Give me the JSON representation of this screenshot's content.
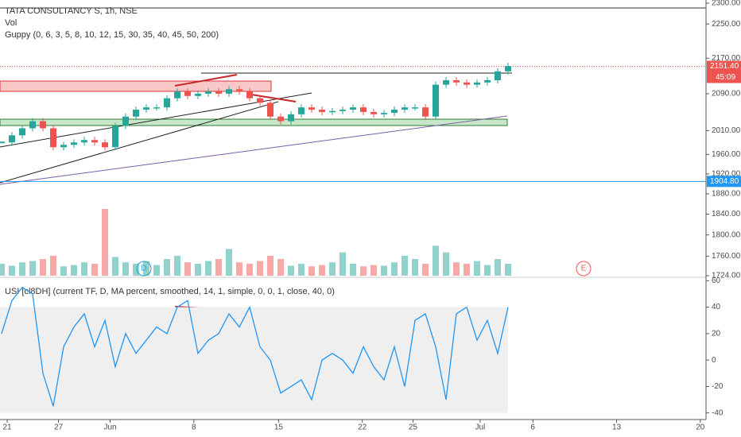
{
  "chart_data": {
    "type": "candlestick",
    "title": "TATA CONSULTANCY S, 1h, NSE",
    "volume_label": "Vol",
    "indicator_label": "Guppy (0, 6, 3, 5, 8, 10, 12, 15, 30, 35, 40, 45, 50, 200)",
    "log_scale": true,
    "ylim": [
      1724,
      2300
    ],
    "yticks": [
      {
        "value": 2300,
        "label": "2300.00"
      },
      {
        "value": 2250,
        "label": "2250.00"
      },
      {
        "value": 2170,
        "label": "2170.00"
      },
      {
        "value": 2090,
        "label": "2090.00"
      },
      {
        "value": 2010,
        "label": "2010.00"
      },
      {
        "value": 1960,
        "label": "1960.00"
      },
      {
        "value": 1920,
        "label": "1920.00"
      },
      {
        "value": 1880,
        "label": "1880.00"
      },
      {
        "value": 1840,
        "label": "1840.00"
      },
      {
        "value": 1800,
        "label": "1800.00"
      },
      {
        "value": 1760,
        "label": "1760.00"
      },
      {
        "value": 1724,
        "label": "1724.00"
      }
    ],
    "xlim": [
      0,
      71
    ],
    "xticks": [
      {
        "value": 0.54,
        "label": "21"
      },
      {
        "value": 5.5,
        "label": "27"
      },
      {
        "value": 10.5,
        "label": "Jun"
      },
      {
        "value": 18.6,
        "label": "8"
      },
      {
        "value": 26.8,
        "label": "15"
      },
      {
        "value": 34.9,
        "label": "22"
      },
      {
        "value": 39.8,
        "label": "25"
      },
      {
        "value": 46.3,
        "label": "Jul"
      },
      {
        "value": 51.4,
        "label": "6"
      },
      {
        "value": 59.5,
        "label": "13"
      },
      {
        "value": 67.6,
        "label": "20"
      }
    ],
    "values": [
      1985,
      2000,
      2015,
      2030,
      2015,
      1975,
      1980,
      1985,
      1990,
      1985,
      1975,
      2020,
      2040,
      2055,
      2060,
      2060,
      2080,
      2095,
      2085,
      2090,
      2095,
      2090,
      2100,
      2095,
      2080,
      2070,
      2040,
      2030,
      2045,
      2060,
      2055,
      2050,
      2052,
      2055,
      2060,
      2050,
      2045,
      2048,
      2055,
      2060,
      2060,
      2040,
      2110,
      2120,
      2115,
      2110,
      2115,
      2120,
      2140,
      2152
    ],
    "up_color": "#26a69a",
    "down_color": "#ef5350",
    "volume": [
      18,
      15,
      20,
      22,
      25,
      30,
      14,
      16,
      20,
      18,
      100,
      28,
      20,
      18,
      22,
      16,
      25,
      30,
      20,
      18,
      22,
      25,
      40,
      20,
      18,
      22,
      30,
      25,
      15,
      18,
      14,
      16,
      20,
      35,
      18,
      14,
      16,
      15,
      20,
      30,
      25,
      18,
      45,
      35,
      20,
      18,
      22,
      16,
      25,
      18
    ],
    "price_line": {
      "value": 2151.4,
      "label": "2151.40"
    },
    "countdown": "45:09",
    "level_line": {
      "value": 1904.8,
      "label": "1904.80"
    },
    "event_markers": [
      "D",
      "E"
    ],
    "oscillator": {
      "title": "USI [cl8DH] (current TF, D, MA percent, smoothed, 14, 1, simple, 0, 0, 1, close, 40, 0)",
      "color": "#2196f3",
      "ylim": [
        -45,
        62
      ],
      "yticks": [
        60,
        40,
        20,
        0,
        -20,
        -40
      ],
      "band": [
        -40,
        40
      ],
      "values": [
        20,
        45,
        55,
        50,
        -10,
        -35,
        10,
        25,
        35,
        10,
        30,
        -5,
        20,
        5,
        15,
        25,
        20,
        40,
        45,
        5,
        15,
        20,
        35,
        25,
        40,
        10,
        0,
        -25,
        -20,
        -15,
        -30,
        0,
        5,
        0,
        -10,
        10,
        -5,
        -15,
        10,
        -20,
        30,
        35,
        10,
        -30,
        35,
        40,
        15,
        30,
        5,
        40
      ]
    }
  }
}
